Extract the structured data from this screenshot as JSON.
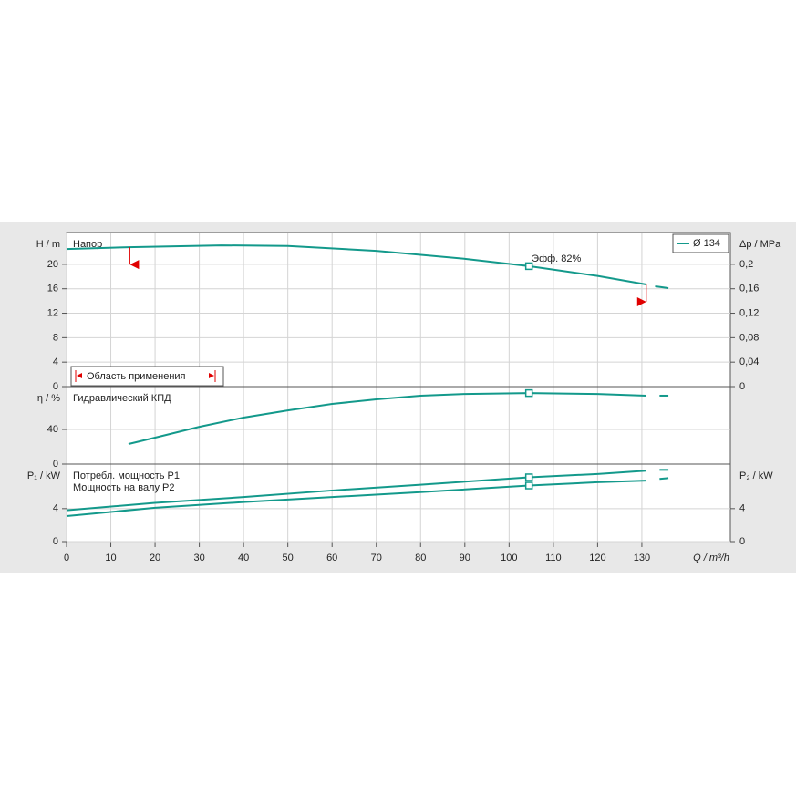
{
  "chart_data": [
    {
      "type": "line",
      "label": "Напор",
      "ylabel": "H / m",
      "y2label": "Δp / MPa",
      "xlim": [
        0,
        150
      ],
      "ylim": [
        0,
        25.2
      ],
      "yticks": [
        0,
        4,
        8,
        12,
        16,
        20
      ],
      "y2lim": [
        0,
        0.252
      ],
      "y2ticks": [
        0,
        {
          "value": 0.04,
          "label": "0,04"
        },
        {
          "value": 0.08,
          "label": "0,08"
        },
        {
          "value": 0.12,
          "label": "0,12"
        },
        {
          "value": 0.16,
          "label": "0,16"
        },
        {
          "value": 0.2,
          "label": "0,2"
        }
      ],
      "grid": true,
      "legend": "upper right",
      "series": [
        {
          "name": "Ø 134",
          "color": "#13998b",
          "x": [
            0,
            14,
            35,
            50,
            70,
            90,
            104.5,
            120,
            131,
            132,
            133,
            136
          ],
          "values": [
            22.5,
            22.8,
            23.1,
            23.0,
            22.2,
            20.9,
            19.7,
            18.1,
            16.7,
            null,
            16.4,
            16.1
          ]
        }
      ],
      "points": [
        {
          "x": 104.5,
          "y": 19.7
        }
      ],
      "annotation": "Эфф.  82%",
      "range": [
        14.3,
        131
      ],
      "range_label": "Область применения"
    },
    {
      "type": "line",
      "label": "Гидравлический КПД",
      "ylabel": "η / %",
      "xlim": [
        0,
        150
      ],
      "ylim": [
        0,
        89.5
      ],
      "yticks": [
        0,
        40
      ],
      "grid": true,
      "series": [
        {
          "color": "#13998b",
          "x": [
            14,
            20,
            30,
            40,
            50,
            60,
            70,
            80,
            90,
            104.5,
            120,
            131,
            132,
            134,
            136
          ],
          "values": [
            23.2,
            30.5,
            43,
            53.7,
            62,
            69.5,
            74.7,
            79,
            81,
            82,
            81,
            79,
            null,
            79,
            79
          ]
        }
      ],
      "points": [
        {
          "x": 104.5,
          "y": 82
        }
      ]
    },
    {
      "type": "line",
      "ylabel": "P₁ / kW",
      "y2label": "P₂ / kW",
      "xlabel": "Q / m³/h",
      "xlim": [
        0,
        150
      ],
      "xticks": [
        0,
        10,
        20,
        30,
        40,
        50,
        60,
        70,
        80,
        90,
        100,
        110,
        120,
        130
      ],
      "ylim": [
        0,
        9.4
      ],
      "yticks": [
        0,
        4
      ],
      "y2lim": [
        0,
        9.4
      ],
      "y2ticks": [
        0,
        4
      ],
      "grid": true,
      "series": [
        {
          "name": "Потребл. мощность P1",
          "color": "#13998b",
          "x": [
            0,
            20,
            40,
            60,
            80,
            104.5,
            120,
            131,
            132,
            134,
            136
          ],
          "values": [
            3.8,
            4.7,
            5.4,
            6.2,
            6.9,
            7.8,
            8.2,
            8.6,
            null,
            8.7,
            8.7
          ]
        },
        {
          "name": "Мощность на валу P2",
          "color": "#13998b",
          "x": [
            0,
            20,
            40,
            60,
            80,
            104.5,
            120,
            131,
            132,
            134,
            136
          ],
          "values": [
            3.1,
            4.1,
            4.8,
            5.4,
            6.0,
            6.8,
            7.2,
            7.4,
            null,
            7.6,
            7.7
          ]
        }
      ],
      "points": [
        {
          "x": 104.5,
          "y": 7.8
        },
        {
          "x": 104.5,
          "y": 6.8
        }
      ]
    }
  ]
}
